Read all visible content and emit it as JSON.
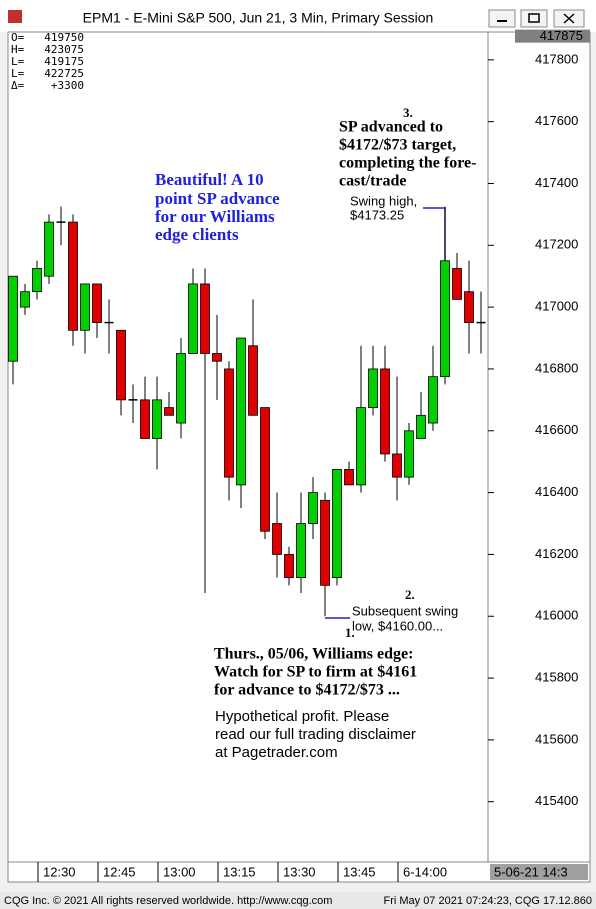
{
  "window_title": "EPM1 - E-Mini S&P 500, Jun 21, 3 Min, Primary Session",
  "header": [
    {
      "label": "O=",
      "value": 419750
    },
    {
      "label": "H=",
      "value": 423075
    },
    {
      "label": "L=",
      "value": 419175
    },
    {
      "label": "L=",
      "value": 422725
    },
    {
      "label": "Δ=",
      "value": 3300,
      "value_label": "+3300"
    }
  ],
  "chart_data": {
    "type": "candlestick",
    "categories": [
      null,
      null,
      null,
      "12:30",
      null,
      null,
      null,
      null,
      "12:45",
      null,
      null,
      null,
      null,
      "13:00",
      null,
      null,
      null,
      null,
      "13:15",
      null,
      null,
      null,
      null,
      "13:30",
      null,
      null,
      null,
      null,
      "13:45",
      null,
      null,
      null,
      null,
      "6-14:00",
      null,
      null,
      null,
      null,
      null,
      null
    ],
    "open": [
      416825,
      417000,
      417050,
      417100,
      417275,
      417275,
      416925,
      417075,
      416950,
      416925,
      416700,
      416700,
      416575,
      416675,
      416625,
      416850,
      417075,
      416850,
      416800,
      416425,
      416875,
      416675,
      416300,
      416200,
      416125,
      416300,
      416375,
      416125,
      416475,
      416425,
      416675,
      416800,
      416525,
      416450,
      416575,
      416625,
      416775,
      417125,
      417050,
      416950
    ],
    "high": [
      417100,
      417075,
      417150,
      417300,
      417325,
      417300,
      417075,
      417075,
      417025,
      416925,
      416750,
      416775,
      416775,
      416725,
      416900,
      417125,
      417125,
      416975,
      416825,
      416900,
      417025,
      416675,
      416400,
      416225,
      416400,
      416450,
      416400,
      416475,
      416500,
      416875,
      416875,
      416875,
      416775,
      416625,
      416725,
      416875,
      417325,
      417175,
      417150,
      417050
    ],
    "low": [
      416750,
      416975,
      417025,
      417075,
      417200,
      416875,
      416850,
      416900,
      416850,
      416650,
      416625,
      416575,
      416475,
      416650,
      416575,
      416850,
      416075,
      416700,
      416375,
      416350,
      416650,
      416250,
      416125,
      416100,
      416075,
      416250,
      416000,
      416100,
      416425,
      416400,
      416650,
      416500,
      416375,
      416425,
      416575,
      416600,
      416750,
      417025,
      416850,
      416850
    ],
    "close": [
      417100,
      417050,
      417125,
      417275,
      417275,
      416925,
      417075,
      416950,
      416950,
      416700,
      416700,
      416575,
      416700,
      416650,
      416850,
      417075,
      416850,
      416825,
      416450,
      416900,
      416650,
      416275,
      416200,
      416125,
      416300,
      416400,
      416100,
      416475,
      416425,
      416675,
      416800,
      416525,
      416450,
      416600,
      416650,
      416775,
      417150,
      417025,
      416950,
      416950
    ],
    "up_color": "#00d000",
    "down_color": "#e00000",
    "ylim": [
      415205,
      417890
    ],
    "yticks": [
      415400,
      415600,
      415800,
      416000,
      416200,
      416400,
      416600,
      416800,
      417000,
      417200,
      417400,
      417600,
      417800
    ],
    "last_price_label": 417875,
    "x_end_label": "5-06-21 14:3",
    "annotations": {
      "blue_note": [
        "Beautiful! A 10",
        "point SP advance",
        "for our Williams",
        "edge clients"
      ],
      "target_number": "3.",
      "target_note": [
        "SP advanced to",
        "$4172/$73 target,",
        "completing the fore-",
        "cast/trade"
      ],
      "swing_high": [
        "Swing high,",
        "$4173.25"
      ],
      "low_number": "2.",
      "swing_low": [
        "Subsequent swing",
        "low, $4160.00..."
      ],
      "entry_number": "1.",
      "edge_note": [
        "Thurs., 05/06, Williams edge:",
        "Watch for SP to firm at $4161",
        "for advance to $4172/$73 ..."
      ],
      "disclaimer": [
        "Hypothetical profit. Please",
        "read our full trading disclaimer",
        "at Pagetrader.com"
      ]
    }
  },
  "footer_left": "CQG Inc. © 2021 All rights reserved worldwide. http://www.cqg.com",
  "footer_right": "Fri May 07 2021 07:24:23, CQG 17.12.860"
}
